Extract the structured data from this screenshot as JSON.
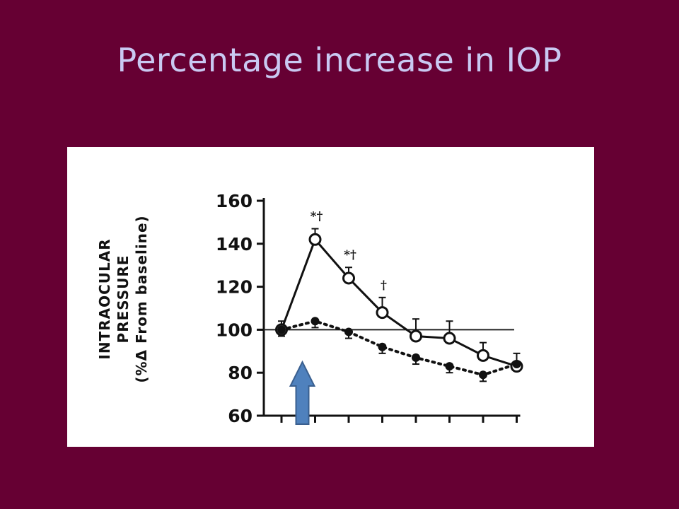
{
  "slide": {
    "title": "Percentage increase in IOP"
  },
  "chart_data": {
    "type": "line",
    "title": "",
    "ylabel_lines": [
      "INTRAOCULAR",
      "PRESSURE",
      "(%Δ From baseline)"
    ],
    "xlabel": "",
    "ylim": [
      60,
      160
    ],
    "yticks": [
      60,
      80,
      100,
      120,
      140,
      160
    ],
    "x_count": 8,
    "baseline": 100,
    "series": [
      {
        "marker": "open-circle",
        "line_style": "solid",
        "values": [
          100,
          142,
          124,
          108,
          97,
          96,
          88,
          83
        ],
        "errors": [
          4,
          5,
          5,
          7,
          8,
          8,
          6,
          6
        ]
      },
      {
        "marker": "filled-circle",
        "line_style": "dotted",
        "values": [
          100,
          104,
          99,
          92,
          87,
          83,
          79,
          84
        ],
        "errors": [
          3,
          3,
          3,
          3,
          3,
          3,
          3,
          3
        ]
      }
    ],
    "annotations": [
      {
        "index": 1,
        "text": "*†"
      },
      {
        "index": 2,
        "text": "*†"
      },
      {
        "index": 3,
        "text": "†"
      }
    ],
    "marker_arrow": {
      "index": 1,
      "color": "#4f81bd"
    }
  }
}
